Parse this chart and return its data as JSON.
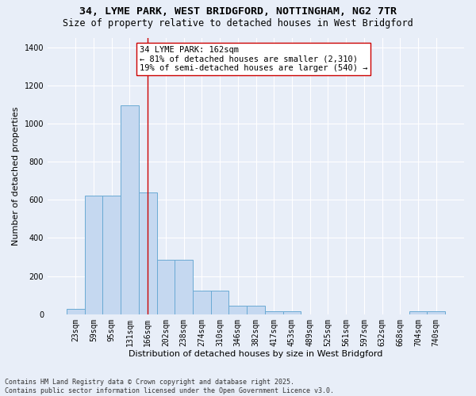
{
  "title_line1": "34, LYME PARK, WEST BRIDGFORD, NOTTINGHAM, NG2 7TR",
  "title_line2": "Size of property relative to detached houses in West Bridgford",
  "xlabel": "Distribution of detached houses by size in West Bridgford",
  "ylabel": "Number of detached properties",
  "categories": [
    "23sqm",
    "59sqm",
    "95sqm",
    "131sqm",
    "166sqm",
    "202sqm",
    "238sqm",
    "274sqm",
    "310sqm",
    "346sqm",
    "382sqm",
    "417sqm",
    "453sqm",
    "489sqm",
    "525sqm",
    "561sqm",
    "597sqm",
    "632sqm",
    "668sqm",
    "704sqm",
    "740sqm"
  ],
  "values": [
    30,
    620,
    620,
    1095,
    640,
    285,
    285,
    125,
    125,
    45,
    45,
    15,
    15,
    0,
    0,
    0,
    0,
    0,
    0,
    15,
    15
  ],
  "bar_color": "#c5d8f0",
  "bar_edge_color": "#6aaad4",
  "vline_x_idx": 4,
  "vline_color": "#cc0000",
  "annotation_text": "34 LYME PARK: 162sqm\n← 81% of detached houses are smaller (2,310)\n19% of semi-detached houses are larger (540) →",
  "annotation_box_color": "white",
  "annotation_box_edge": "#cc0000",
  "ylim": [
    0,
    1450
  ],
  "yticks": [
    0,
    200,
    400,
    600,
    800,
    1000,
    1200,
    1400
  ],
  "bg_color": "#e8eef8",
  "grid_color": "white",
  "footnote": "Contains HM Land Registry data © Crown copyright and database right 2025.\nContains public sector information licensed under the Open Government Licence v3.0.",
  "title_fontsize": 9.5,
  "subtitle_fontsize": 8.5,
  "axis_label_fontsize": 8,
  "tick_fontsize": 7,
  "annotation_fontsize": 7.5,
  "footnote_fontsize": 6
}
